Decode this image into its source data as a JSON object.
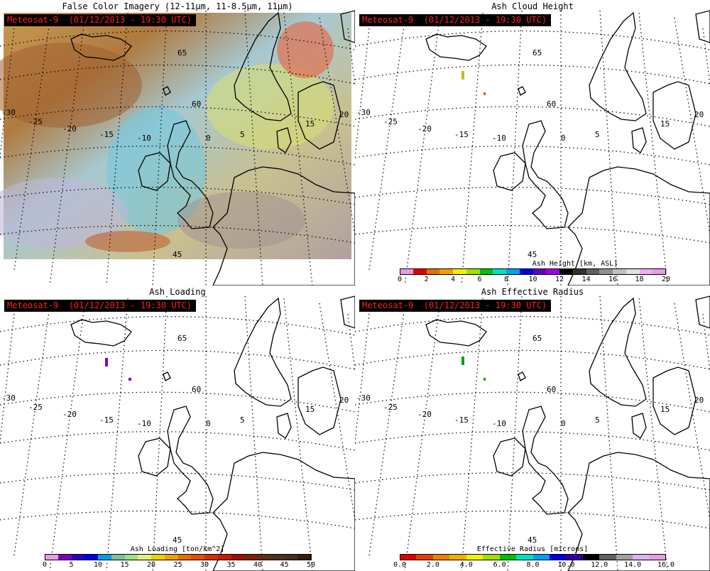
{
  "satellite_label": "Meteosat-9  (01/12/2013 - 19:30 UTC)",
  "lat_labels": [
    "65",
    "60",
    "45"
  ],
  "lon_labels": [
    "-30",
    "-25",
    "-20",
    "-15",
    "-10",
    "0",
    "5",
    "15",
    "20"
  ],
  "panels": [
    {
      "title": "False Color Imagery (12-11µm, 11-8.5µm, 11µm)"
    },
    {
      "title": "Ash Cloud Height",
      "colorbar": {
        "title": "Ash Height [km, ASL]",
        "ticks": [
          "0",
          "2",
          "4",
          "6",
          "8",
          "10",
          "12",
          "14",
          "16",
          "18",
          "20"
        ],
        "colors": [
          "#e0a0e0",
          "#e00000",
          "#e07000",
          "#f0a000",
          "#f0f000",
          "#a0e000",
          "#00c000",
          "#00e0c0",
          "#00a0f0",
          "#0000e0",
          "#6000c0",
          "#a000e0",
          "#000000",
          "#303030",
          "#606060",
          "#909090",
          "#c0c0c0",
          "#e0e0e0",
          "#f0b0f0",
          "#e0a0e0"
        ]
      }
    },
    {
      "title": "Ash Loading",
      "colorbar": {
        "title": "Ash Loading [ton/km^2]",
        "ticks": [
          "0",
          "5",
          "10",
          "15",
          "20",
          "25",
          "30",
          "35",
          "40",
          "45",
          "50"
        ],
        "colors": [
          "#e0a0e0",
          "#8000c0",
          "#3000c0",
          "#0000e0",
          "#00a0e0",
          "#80c0a0",
          "#a0e080",
          "#e0f080",
          "#f0d000",
          "#f0a000",
          "#e07000",
          "#e05000",
          "#d03000",
          "#c02000",
          "#a01000",
          "#802000",
          "#603010",
          "#503020",
          "#403020",
          "#302010"
        ]
      }
    },
    {
      "title": "Ash Effective Radius",
      "colorbar": {
        "title": "Effective Radius [microns]",
        "ticks": [
          "0.0",
          "2.0",
          "4.0",
          "6.0",
          "8.0",
          "10.0",
          "12.0",
          "14.0",
          "16.0"
        ],
        "colors": [
          "#e00000",
          "#e04000",
          "#f08000",
          "#f0b000",
          "#f0f000",
          "#a0e000",
          "#00c000",
          "#00e0c0",
          "#00a0f0",
          "#0000e0",
          "#3000a0",
          "#000000",
          "#606060",
          "#a0a0a0",
          "#e0b0f0",
          "#e0a0e0"
        ]
      }
    }
  ]
}
